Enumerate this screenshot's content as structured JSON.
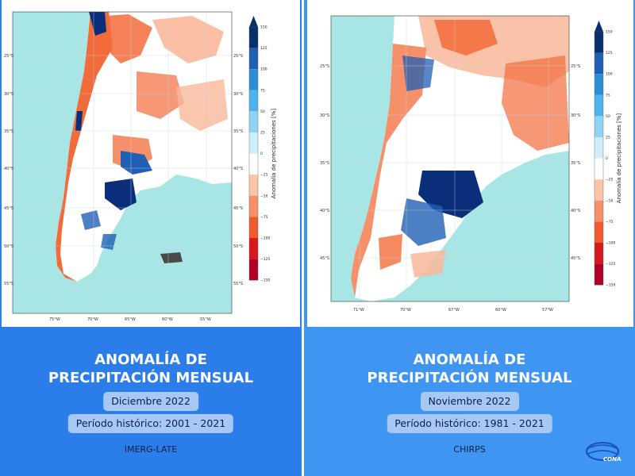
{
  "panels": [
    {
      "title_line1": "ANOMALÍA DE",
      "title_line2": "PRECIPITACIÓN MENSUAL",
      "month": "Diciembre 2022",
      "period": "Período histórico: 2001 - 2021",
      "source": "IMERG-LATE",
      "lat_labels": [
        "25°S",
        "30°S",
        "35°S",
        "40°S",
        "45°S",
        "50°S",
        "55°S"
      ],
      "lon_labels": [
        "75°W",
        "70°W",
        "65°W",
        "60°W",
        "55°W"
      ]
    },
    {
      "title_line1": "ANOMALÍA DE",
      "title_line2": "PRECIPITACIÓN MENSUAL",
      "month": "Noviembre 2022",
      "period": "Período histórico: 1981 - 2021",
      "source": "CHIRPS",
      "lat_labels": [
        "25°S",
        "30°S",
        "35°S",
        "40°S",
        "45°S"
      ],
      "lon_labels": [
        "71°W",
        "70°W",
        "67°W",
        "60°W",
        "57°W"
      ]
    }
  ],
  "colorbar": {
    "label": "Anomalía de precipitaciones [%]",
    "ticks": [
      "150",
      "125",
      "100",
      "75",
      "50",
      "25",
      "0",
      "−25",
      "−50",
      "−75",
      "−100",
      "−125",
      "−150"
    ],
    "colors": [
      "#08306b",
      "#1f5fb4",
      "#2b8fd6",
      "#4db3ec",
      "#8fd3f5",
      "#cdeefc",
      "#ffffff",
      "#ffffff",
      "#fcc5a8",
      "#f7906a",
      "#f05a2e",
      "#d7191c",
      "#b10026"
    ]
  },
  "colors": {
    "ocean": "#a8e6e6",
    "land_neutral": "#ffffff",
    "dry": "#f26b3a",
    "dry_light": "#f9b89a",
    "wet": "#1f5fb4",
    "wet_dark": "#0b2e7a",
    "left_bg": "#2b7de9",
    "right_bg": "#3f95f2"
  },
  "logo": {
    "text": "CONAE"
  }
}
